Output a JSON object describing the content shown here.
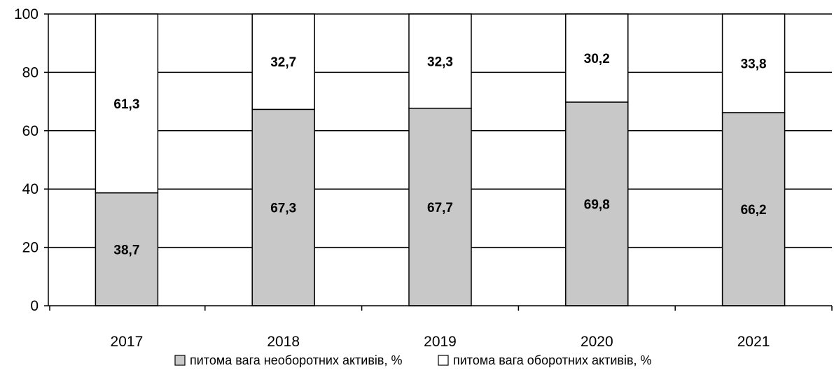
{
  "chart_data": {
    "type": "bar",
    "stacked": true,
    "categories": [
      "2017",
      "2018",
      "2019",
      "2020",
      "2021"
    ],
    "series": [
      {
        "name": "питома вага необоротних активів, %",
        "values": [
          38.7,
          67.3,
          67.7,
          69.8,
          66.2
        ],
        "labels": [
          "38,7",
          "67,3",
          "67,7",
          "69,8",
          "66,2"
        ],
        "color": "#c8c8c8"
      },
      {
        "name": "питома вага оборотних активів, %",
        "values": [
          61.3,
          32.7,
          32.3,
          30.2,
          33.8
        ],
        "labels": [
          "61,3",
          "32,7",
          "32,3",
          "30,2",
          "33,8"
        ],
        "color": "#ffffff"
      }
    ],
    "ylim": [
      0,
      100
    ],
    "yticks": [
      "0",
      "20",
      "40",
      "60",
      "80",
      "100"
    ],
    "title": "",
    "xlabel": "",
    "ylabel": "",
    "grid": true,
    "legend_position": "bottom"
  }
}
